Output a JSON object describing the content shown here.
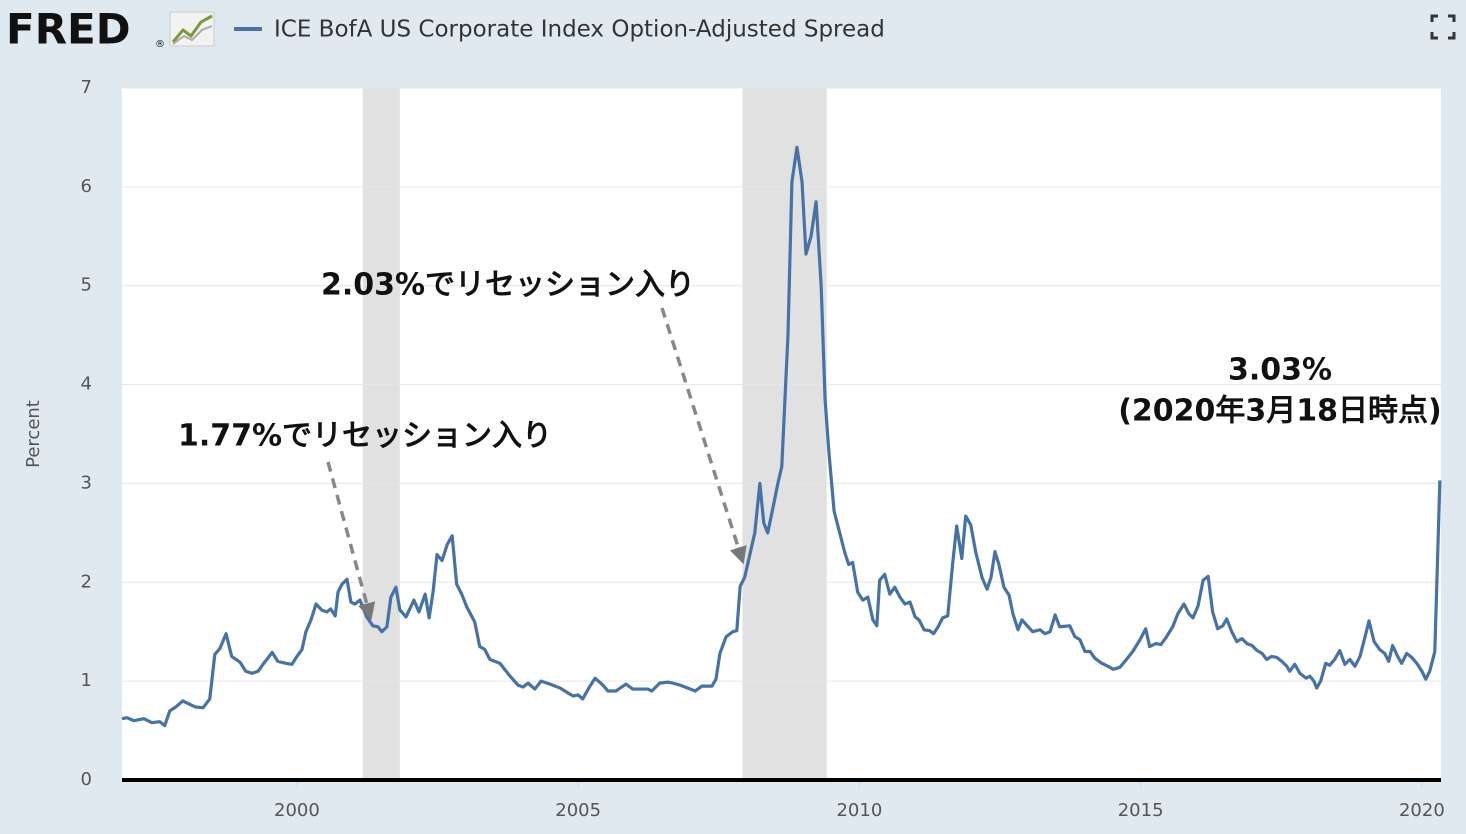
{
  "header": {
    "brand": "FRED",
    "brand_mark": "®"
  },
  "chart_data": {
    "type": "line",
    "y_label": "Percent",
    "xlim": [
      1996.89,
      2020.34
    ],
    "ylim": [
      0,
      7
    ],
    "xticks": [
      2000,
      2005,
      2010,
      2015,
      2020
    ],
    "yticks": [
      0,
      1,
      2,
      3,
      4,
      5,
      6,
      7
    ],
    "grid": true,
    "shaded_periods": [
      [
        2001.17,
        2001.83
      ],
      [
        2007.92,
        2009.42
      ]
    ],
    "shade_color": "#e1e1e1",
    "annotations": [
      "2.03%でリセッション入り",
      "1.77%でリセッション入り",
      "3.03%",
      "(2020年3月18日時点)"
    ],
    "x": [
      1996.89,
      1996.98,
      1997.1,
      1997.28,
      1997.42,
      1997.56,
      1997.65,
      1997.74,
      1997.85,
      1997.97,
      1998.08,
      1998.19,
      1998.33,
      1998.45,
      1998.54,
      1998.63,
      1998.74,
      1998.84,
      1998.99,
      1999.09,
      1999.2,
      1999.31,
      1999.41,
      1999.56,
      1999.66,
      1999.8,
      1999.91,
      2000.0,
      2000.09,
      2000.16,
      2000.25,
      2000.34,
      2000.44,
      2000.53,
      2000.6,
      2000.68,
      2000.73,
      2000.8,
      2000.89,
      2000.96,
      2001.03,
      2001.12,
      2001.24,
      2001.35,
      2001.44,
      2001.51,
      2001.6,
      2001.67,
      2001.76,
      2001.83,
      2001.94,
      2002.08,
      2002.17,
      2002.28,
      2002.35,
      2002.42,
      2002.49,
      2002.58,
      2002.67,
      2002.76,
      2002.84,
      2002.93,
      2003.02,
      2003.16,
      2003.25,
      2003.34,
      2003.43,
      2003.61,
      2003.79,
      2003.93,
      2004.02,
      2004.11,
      2004.23,
      2004.34,
      2004.5,
      2004.68,
      2004.82,
      2004.91,
      2005.0,
      2005.08,
      2005.21,
      2005.3,
      2005.44,
      2005.53,
      2005.67,
      2005.85,
      2005.97,
      2006.24,
      2006.31,
      2006.45,
      2006.6,
      2006.68,
      2006.81,
      2006.99,
      2007.08,
      2007.2,
      2007.38,
      2007.45,
      2007.52,
      2007.63,
      2007.75,
      2007.82,
      2007.88,
      2007.96,
      2008.14,
      2008.23,
      2008.3,
      2008.37,
      2008.48,
      2008.55,
      2008.62,
      2008.73,
      2008.8,
      2008.89,
      2008.98,
      2009.05,
      2009.14,
      2009.23,
      2009.32,
      2009.39,
      2009.46,
      2009.55,
      2009.65,
      2009.74,
      2009.81,
      2009.88,
      2009.97,
      2010.06,
      2010.15,
      2010.24,
      2010.31,
      2010.36,
      2010.45,
      2010.54,
      2010.63,
      2010.72,
      2010.81,
      2010.9,
      2010.99,
      2011.06,
      2011.15,
      2011.25,
      2011.32,
      2011.4,
      2011.48,
      2011.57,
      2011.66,
      2011.73,
      2011.82,
      2011.89,
      2011.98,
      2012.07,
      2012.18,
      2012.27,
      2012.34,
      2012.41,
      2012.48,
      2012.57,
      2012.66,
      2012.73,
      2012.82,
      2012.89,
      2013.0,
      2013.08,
      2013.21,
      2013.3,
      2013.39,
      2013.48,
      2013.56,
      2013.74,
      2013.83,
      2013.92,
      2014.01,
      2014.1,
      2014.19,
      2014.31,
      2014.42,
      2014.51,
      2014.63,
      2014.72,
      2014.86,
      2014.99,
      2015.09,
      2015.16,
      2015.27,
      2015.36,
      2015.45,
      2015.57,
      2015.66,
      2015.77,
      2015.86,
      2015.93,
      2016.02,
      2016.11,
      2016.2,
      2016.28,
      2016.37,
      2016.46,
      2016.53,
      2016.62,
      2016.71,
      2016.8,
      2016.89,
      2016.98,
      2017.07,
      2017.16,
      2017.24,
      2017.33,
      2017.42,
      2017.51,
      2017.6,
      2017.65,
      2017.74,
      2017.83,
      2017.94,
      2018.01,
      2018.08,
      2018.13,
      2018.2,
      2018.29,
      2018.36,
      2018.45,
      2018.54,
      2018.63,
      2018.72,
      2018.81,
      2018.9,
      2018.99,
      2019.06,
      2019.15,
      2019.25,
      2019.34,
      2019.41,
      2019.48,
      2019.57,
      2019.64,
      2019.73,
      2019.82,
      2019.91,
      2020.0,
      2020.07,
      2020.14,
      2020.23,
      2020.32
    ],
    "series": [
      {
        "name": "ICE BofA US Corporate Index Option-Adjusted Spread",
        "color": "#4572a7",
        "values": [
          0.62,
          0.63,
          0.6,
          0.62,
          0.58,
          0.59,
          0.55,
          0.7,
          0.74,
          0.8,
          0.77,
          0.74,
          0.73,
          0.82,
          1.27,
          1.33,
          1.48,
          1.25,
          1.19,
          1.1,
          1.08,
          1.1,
          1.18,
          1.29,
          1.2,
          1.18,
          1.17,
          1.25,
          1.32,
          1.5,
          1.62,
          1.78,
          1.72,
          1.7,
          1.73,
          1.66,
          1.9,
          1.98,
          2.03,
          1.8,
          1.78,
          1.82,
          1.65,
          1.56,
          1.55,
          1.5,
          1.55,
          1.85,
          1.95,
          1.72,
          1.65,
          1.82,
          1.7,
          1.88,
          1.64,
          1.9,
          2.28,
          2.22,
          2.38,
          2.47,
          1.98,
          1.88,
          1.75,
          1.6,
          1.35,
          1.32,
          1.22,
          1.18,
          1.05,
          0.96,
          0.94,
          0.98,
          0.92,
          1.0,
          0.97,
          0.93,
          0.88,
          0.85,
          0.86,
          0.82,
          0.95,
          1.03,
          0.96,
          0.9,
          0.9,
          0.97,
          0.92,
          0.92,
          0.9,
          0.98,
          0.99,
          0.98,
          0.96,
          0.92,
          0.9,
          0.95,
          0.95,
          1.02,
          1.28,
          1.45,
          1.5,
          1.51,
          1.96,
          2.05,
          2.5,
          3.0,
          2.6,
          2.5,
          2.8,
          3.0,
          3.17,
          4.5,
          6.05,
          6.4,
          6.05,
          5.32,
          5.5,
          5.85,
          5.0,
          3.85,
          3.3,
          2.72,
          2.5,
          2.3,
          2.18,
          2.2,
          1.9,
          1.82,
          1.85,
          1.62,
          1.56,
          2.02,
          2.08,
          1.88,
          1.95,
          1.85,
          1.78,
          1.8,
          1.65,
          1.62,
          1.52,
          1.51,
          1.48,
          1.55,
          1.64,
          1.66,
          2.2,
          2.57,
          2.24,
          2.67,
          2.58,
          2.3,
          2.05,
          1.93,
          2.05,
          2.31,
          2.18,
          1.95,
          1.87,
          1.68,
          1.52,
          1.62,
          1.55,
          1.5,
          1.52,
          1.48,
          1.5,
          1.67,
          1.55,
          1.56,
          1.45,
          1.42,
          1.3,
          1.3,
          1.23,
          1.18,
          1.15,
          1.12,
          1.14,
          1.2,
          1.3,
          1.42,
          1.53,
          1.35,
          1.38,
          1.37,
          1.44,
          1.55,
          1.68,
          1.78,
          1.68,
          1.64,
          1.76,
          2.02,
          2.06,
          1.7,
          1.53,
          1.56,
          1.63,
          1.5,
          1.4,
          1.43,
          1.38,
          1.36,
          1.31,
          1.28,
          1.22,
          1.25,
          1.24,
          1.2,
          1.15,
          1.1,
          1.17,
          1.08,
          1.03,
          1.05,
          1.0,
          0.93,
          1.0,
          1.18,
          1.16,
          1.22,
          1.31,
          1.17,
          1.22,
          1.15,
          1.25,
          1.45,
          1.61,
          1.4,
          1.32,
          1.28,
          1.2,
          1.36,
          1.25,
          1.18,
          1.28,
          1.24,
          1.18,
          1.1,
          1.02,
          1.1,
          1.3,
          3.03
        ]
      }
    ]
  }
}
